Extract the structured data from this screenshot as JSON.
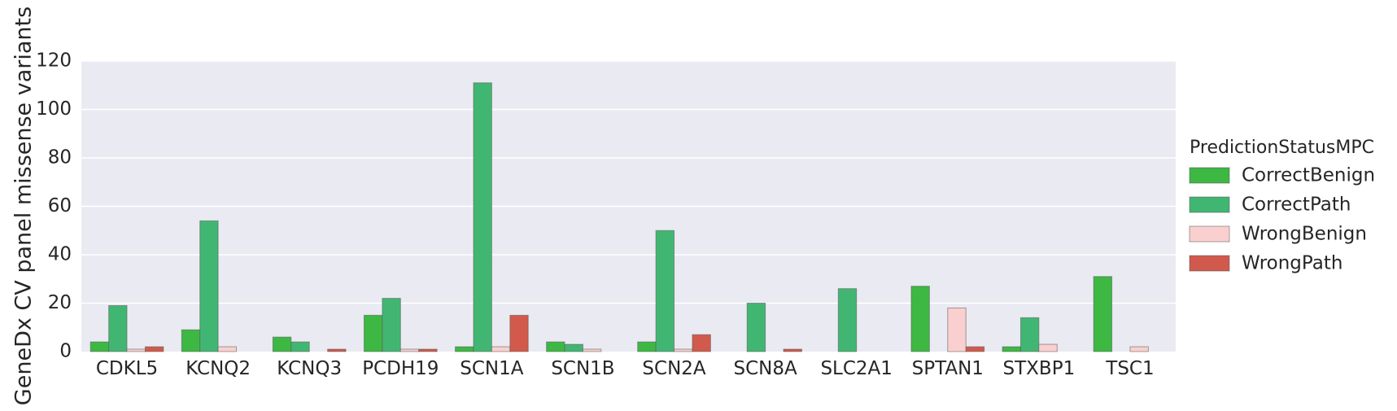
{
  "chart_data": {
    "type": "bar",
    "title": "",
    "xlabel": "",
    "ylabel": "GeneDx CV panel missense variants",
    "ylim": [
      0,
      120
    ],
    "yticks": [
      "0",
      "20",
      "40",
      "60",
      "80",
      "100",
      "120"
    ],
    "grid": true,
    "legend_position": "right",
    "legend_title": "PredictionStatusMPC",
    "categories": [
      "CDKL5",
      "KCNQ2",
      "KCNQ3",
      "PCDH19",
      "SCN1A",
      "SCN1B",
      "SCN2A",
      "SCN8A",
      "SLC2A1",
      "SPTAN1",
      "STXBP1",
      "TSC1"
    ],
    "series": [
      {
        "name": "CorrectBenign",
        "color": "#3db843",
        "values": [
          4,
          9,
          6,
          15,
          2,
          4,
          4,
          0,
          0,
          27,
          2,
          31
        ]
      },
      {
        "name": "CorrectPath",
        "color": "#41b672",
        "values": [
          19,
          54,
          4,
          22,
          111,
          3,
          50,
          20,
          26,
          0,
          14,
          0
        ]
      },
      {
        "name": "WrongBenign",
        "color": "#f9d0cf",
        "values": [
          1,
          2,
          0,
          1,
          2,
          1,
          1,
          0,
          0,
          18,
          3,
          2
        ]
      },
      {
        "name": "WrongPath",
        "color": "#d15a4c",
        "values": [
          2,
          0,
          1,
          1,
          15,
          0,
          7,
          1,
          0,
          2,
          0,
          0
        ]
      }
    ]
  }
}
